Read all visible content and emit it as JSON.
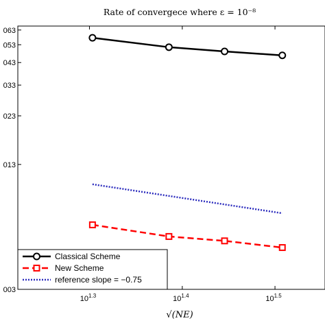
{
  "chart_data": {
    "type": "line",
    "title": "Rate of convergece where ε = 10⁻⁸",
    "xlabel": "√(NE)",
    "ylabel": "",
    "x_scale": "log",
    "y_scale": "log",
    "xlim": [
      16.7,
      35.8
    ],
    "ylim": [
      0.003,
      0.066
    ],
    "x_ticks": [
      {
        "value": 19.95,
        "base": "10",
        "exp": "1.3"
      },
      {
        "value": 25.12,
        "base": "10",
        "exp": "1.4"
      },
      {
        "value": 31.62,
        "base": "10",
        "exp": "1.5"
      }
    ],
    "y_ticks": [
      {
        "value": 0.063,
        "label": "063"
      },
      {
        "value": 0.053,
        "label": "053"
      },
      {
        "value": 0.043,
        "label": "043"
      },
      {
        "value": 0.033,
        "label": "033"
      },
      {
        "value": 0.023,
        "label": "023"
      },
      {
        "value": 0.013,
        "label": "013"
      },
      {
        "value": 0.003,
        "label": "003"
      }
    ],
    "series": [
      {
        "name": "Classical Scheme",
        "color": "#000000",
        "style": "solid",
        "marker": "circle",
        "x": [
          20.1,
          24.3,
          27.9,
          32.2
        ],
        "y": [
          0.0575,
          0.0515,
          0.049,
          0.0468
        ]
      },
      {
        "name": "New Scheme",
        "color": "#ff0000",
        "style": "dashed",
        "marker": "square",
        "x": [
          20.1,
          24.3,
          27.9,
          32.2
        ],
        "y": [
          0.0064,
          0.00558,
          0.0053,
          0.0049
        ]
      },
      {
        "name": "reference slope = −0.75",
        "color": "#2b2bbd",
        "style": "dotted",
        "marker": "none",
        "x": [
          20.1,
          32.2
        ],
        "y": [
          0.0103,
          0.00733
        ]
      }
    ],
    "legend_position": "bottom-left",
    "grid": false
  }
}
